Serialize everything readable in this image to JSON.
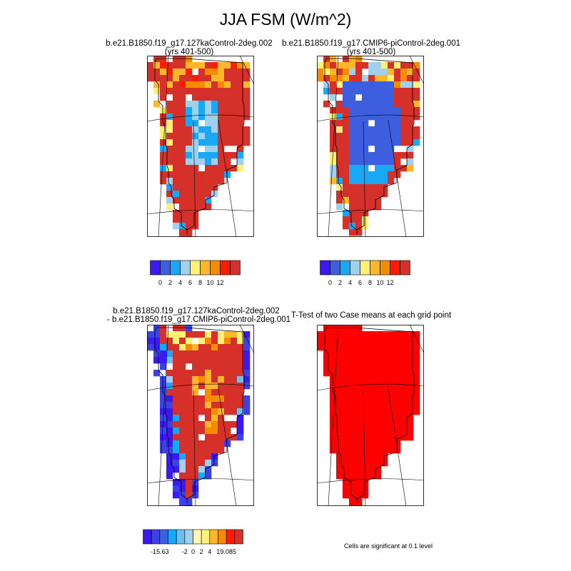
{
  "title": "JJA FSM (W/m^2)",
  "chart_data": [
    {
      "type": "heatmap",
      "title": "b.e21.B1850.f19_g17.127kaControl-2deg.002",
      "subtitle": "(yrs 401-500)",
      "region": "Greenland",
      "pattern": "mostly >12 over ice sheet, lower values (2-6) in northern interior",
      "colorbar": {
        "labels": [
          "0",
          "2",
          "4",
          "6",
          "8",
          "10",
          "12"
        ],
        "colors": [
          "#3a19f2",
          "#3d5fdf",
          "#19a8f5",
          "#9fd0ee",
          "#fff176",
          "#fdb728",
          "#f58b00",
          "#ff1a00",
          "#d6302b"
        ]
      }
    },
    {
      "type": "heatmap",
      "title": "b.e21.B1850.f19_g17.CMIP6-piControl-2deg.001",
      "subtitle": "(yrs 401-500)",
      "region": "Greenland",
      "pattern": "low values (0-2) over northern/central interior, >12 on southern ice sheet",
      "colorbar": {
        "labels": [
          "0",
          "2",
          "4",
          "6",
          "8",
          "10",
          "12"
        ],
        "colors": [
          "#3a19f2",
          "#3d5fdf",
          "#19a8f5",
          "#9fd0ee",
          "#fff176",
          "#fdb728",
          "#f58b00",
          "#ff1a00",
          "#d6302b"
        ]
      }
    },
    {
      "type": "heatmap",
      "title": "b.e21.B1850.f19_g17.127kaControl-2deg.002",
      "subtitle": "- b.e21.B1850.f19_g17.CMIP6-piControl-2deg.001",
      "region": "Greenland",
      "pattern": "difference mostly >4 over interior, negative along west and east margins",
      "colorbar": {
        "labels": [
          "-15.63",
          "-2",
          "0",
          "2",
          "4",
          "19.085"
        ],
        "colors": [
          "#3a19f2",
          "#3d42e8",
          "#3d5fdf",
          "#19a8f5",
          "#6cc0f0",
          "#9fd0ee",
          "#fff9b0",
          "#fff176",
          "#fdb728",
          "#f58b00",
          "#ff1a00",
          "#d6302b"
        ]
      }
    },
    {
      "type": "heatmap",
      "title": "T-Test of two Case means at each grid point",
      "region": "Greenland",
      "pattern": "all ice-sheet cells significant (red)",
      "note": "Cells are significant at 0.1 level"
    }
  ]
}
